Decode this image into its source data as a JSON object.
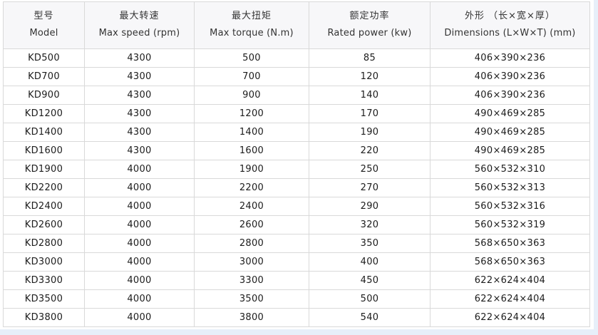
{
  "page": {
    "background_color": "#e7eff9",
    "panel_color": "#ffffff",
    "border_color": "#d9d9d9",
    "header_bg_color": "#f7f7f9",
    "text_color": "#1c1c1c"
  },
  "table": {
    "columns": [
      {
        "zh": "型号",
        "en": "Model"
      },
      {
        "zh": "最大转速",
        "en": "Max speed (rpm)"
      },
      {
        "zh": "最大扭矩",
        "en": "Max torque (N.m)"
      },
      {
        "zh": "额定功率",
        "en": "Rated power (kw)"
      },
      {
        "zh": "外形 （长×宽×厚）",
        "en": "Dimensions (L×W×T) (mm)"
      }
    ],
    "rows": [
      [
        "KD500",
        "4300",
        "500",
        "85",
        "406×390×236"
      ],
      [
        "KD700",
        "4300",
        "700",
        "120",
        "406×390×236"
      ],
      [
        "KD900",
        "4300",
        "900",
        "140",
        "406×390×236"
      ],
      [
        "KD1200",
        "4300",
        "1200",
        "170",
        "490×469×285"
      ],
      [
        "KD1400",
        "4300",
        "1400",
        "190",
        "490×469×285"
      ],
      [
        "KD1600",
        "4300",
        "1600",
        "220",
        "490×469×285"
      ],
      [
        "KD1900",
        "4000",
        "1900",
        "250",
        "560×532×310"
      ],
      [
        "KD2200",
        "4000",
        "2200",
        "270",
        "560×532×313"
      ],
      [
        "KD2400",
        "4000",
        "2400",
        "290",
        "560×532×316"
      ],
      [
        "KD2600",
        "4000",
        "2600",
        "320",
        "560×532×319"
      ],
      [
        "KD2800",
        "4000",
        "2800",
        "350",
        "568×650×363"
      ],
      [
        "KD3000",
        "4000",
        "3000",
        "400",
        "568×650×363"
      ],
      [
        "KD3300",
        "4000",
        "3300",
        "450",
        "622×624×404"
      ],
      [
        "KD3500",
        "4000",
        "3500",
        "500",
        "622×624×404"
      ],
      [
        "KD3800",
        "4000",
        "3800",
        "540",
        "622×624×404"
      ]
    ]
  }
}
